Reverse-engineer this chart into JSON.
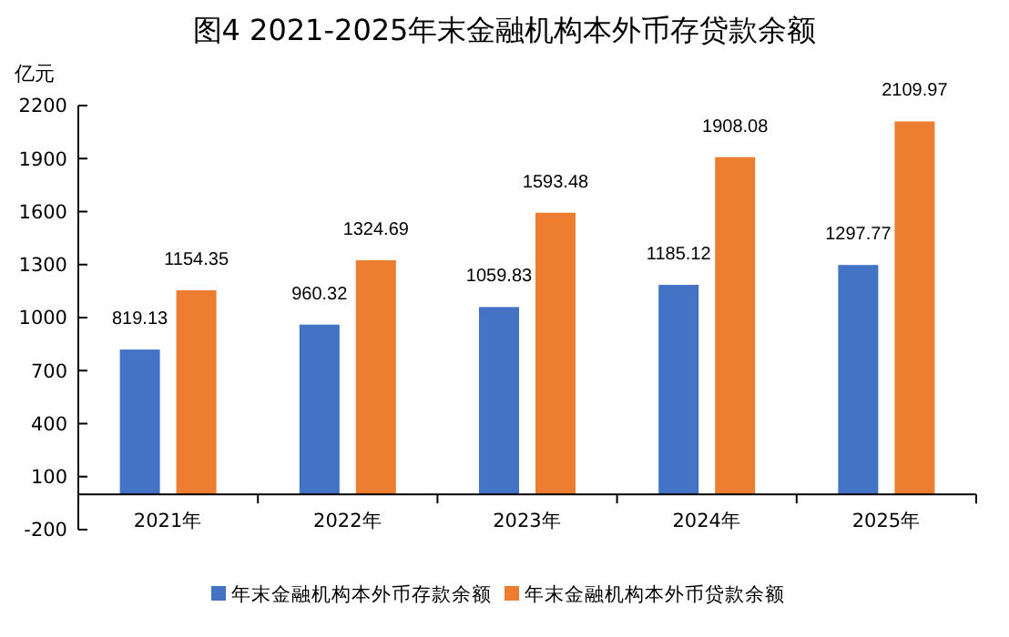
{
  "chart_data": {
    "type": "bar",
    "title": "图4  2021-2025年末金融机构本外币存贷款余额",
    "ylabel": "亿元",
    "categories": [
      "2021年",
      "2022年",
      "2023年",
      "2024年",
      "2025年"
    ],
    "series": [
      {
        "name": "年末金融机构本外币存款余额",
        "color": "#4472c4",
        "values": [
          819.13,
          960.32,
          1059.83,
          1185.12,
          1297.77
        ]
      },
      {
        "name": "年末金融机构本外币贷款余额",
        "color": "#ed7d31",
        "values": [
          1154.35,
          1324.69,
          1593.48,
          1908.08,
          2109.97
        ]
      }
    ],
    "ylim": [
      -200,
      2200
    ],
    "yticks": [
      -200,
      100,
      400,
      700,
      1000,
      1300,
      1600,
      1900,
      2200
    ],
    "data_labels": true,
    "legend": "bottom",
    "grid": false
  }
}
